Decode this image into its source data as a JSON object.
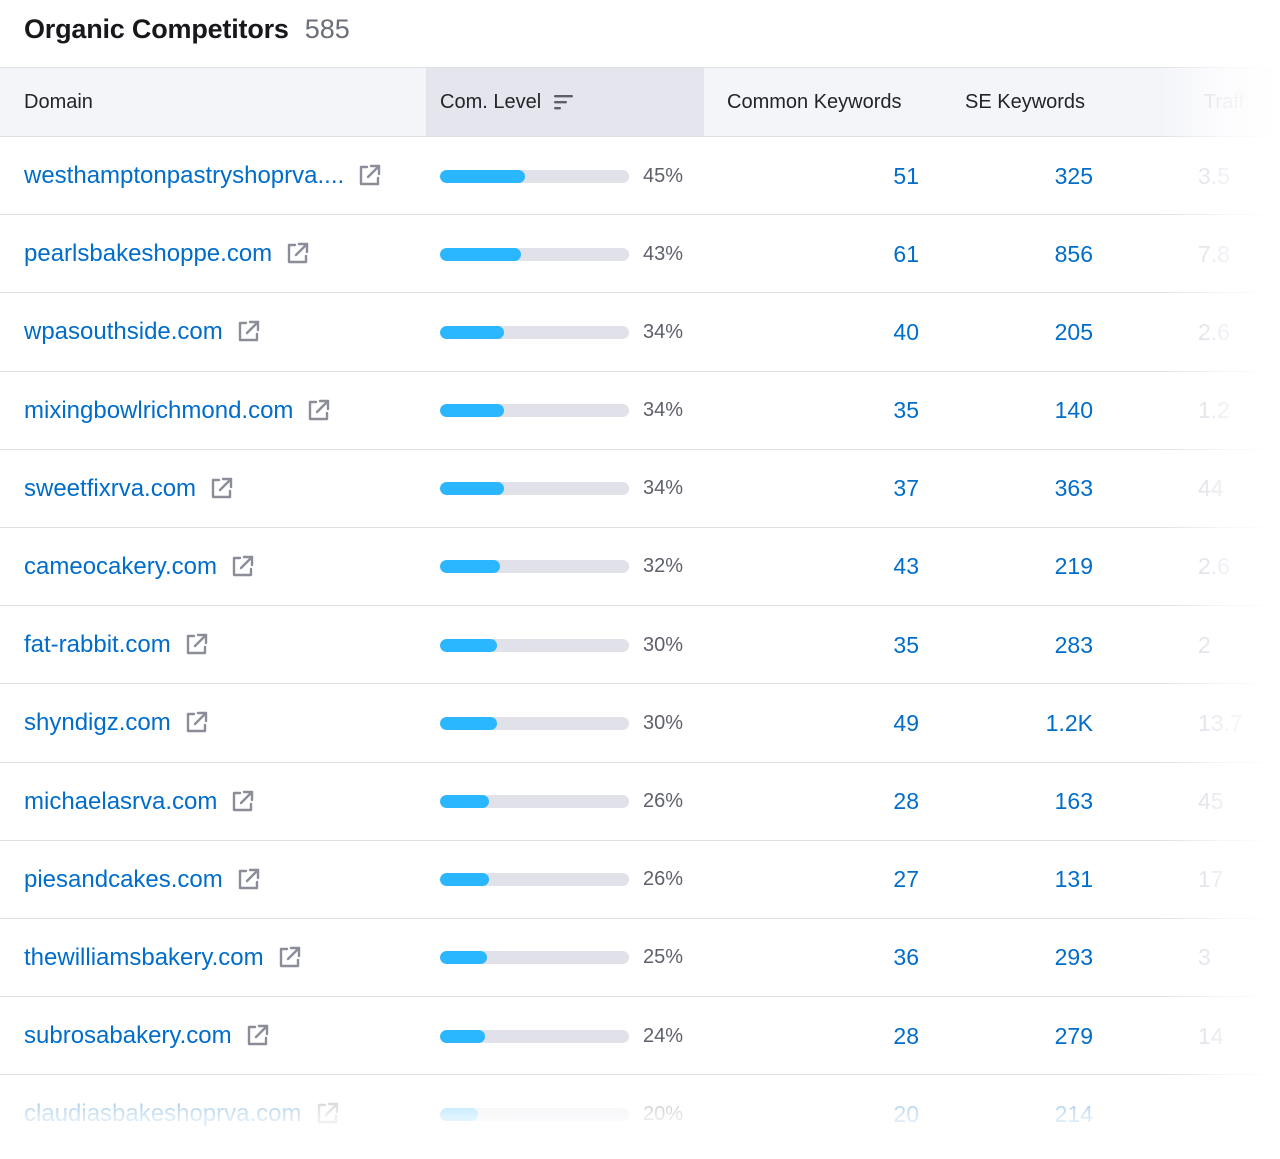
{
  "header": {
    "title": "Organic Competitors",
    "count": "585"
  },
  "columns": {
    "domain": "Domain",
    "com_level": "Com. Level",
    "common_keywords": "Common Keywords",
    "se_keywords": "SE Keywords",
    "traffic": "Traff"
  },
  "colors": {
    "link": "#006dca",
    "bar_fill": "#2bb7ff",
    "bar_track": "#e0e1e9",
    "sorted_header": "#e4e5ed"
  },
  "icons": {
    "sort": "sort-descending-icon",
    "external": "external-link-icon"
  },
  "rows": [
    {
      "domain": "westhamptonpastryshoprva....",
      "level": 0.45,
      "pct": "45%",
      "common": "51",
      "se": "325",
      "traffic": "3.5"
    },
    {
      "domain": "pearlsbakeshoppe.com",
      "level": 0.43,
      "pct": "43%",
      "common": "61",
      "se": "856",
      "traffic": "7.8"
    },
    {
      "domain": "wpasouthside.com",
      "level": 0.34,
      "pct": "34%",
      "common": "40",
      "se": "205",
      "traffic": "2.6"
    },
    {
      "domain": "mixingbowlrichmond.com",
      "level": 0.34,
      "pct": "34%",
      "common": "35",
      "se": "140",
      "traffic": "1.2"
    },
    {
      "domain": "sweetfixrva.com",
      "level": 0.34,
      "pct": "34%",
      "common": "37",
      "se": "363",
      "traffic": "44"
    },
    {
      "domain": "cameocakery.com",
      "level": 0.32,
      "pct": "32%",
      "common": "43",
      "se": "219",
      "traffic": "2.6"
    },
    {
      "domain": "fat-rabbit.com",
      "level": 0.3,
      "pct": "30%",
      "common": "35",
      "se": "283",
      "traffic": "2"
    },
    {
      "domain": "shyndigz.com",
      "level": 0.3,
      "pct": "30%",
      "common": "49",
      "se": "1.2K",
      "traffic": "13.7"
    },
    {
      "domain": "michaelasrva.com",
      "level": 0.26,
      "pct": "26%",
      "common": "28",
      "se": "163",
      "traffic": "45"
    },
    {
      "domain": "piesandcakes.com",
      "level": 0.26,
      "pct": "26%",
      "common": "27",
      "se": "131",
      "traffic": "17"
    },
    {
      "domain": "thewilliamsbakery.com",
      "level": 0.25,
      "pct": "25%",
      "common": "36",
      "se": "293",
      "traffic": "3"
    },
    {
      "domain": "subrosabakery.com",
      "level": 0.24,
      "pct": "24%",
      "common": "28",
      "se": "279",
      "traffic": "14"
    },
    {
      "domain": "claudiasbakeshoprva.com",
      "level": 0.2,
      "pct": "20%",
      "common": "20",
      "se": "214",
      "traffic": ""
    }
  ]
}
